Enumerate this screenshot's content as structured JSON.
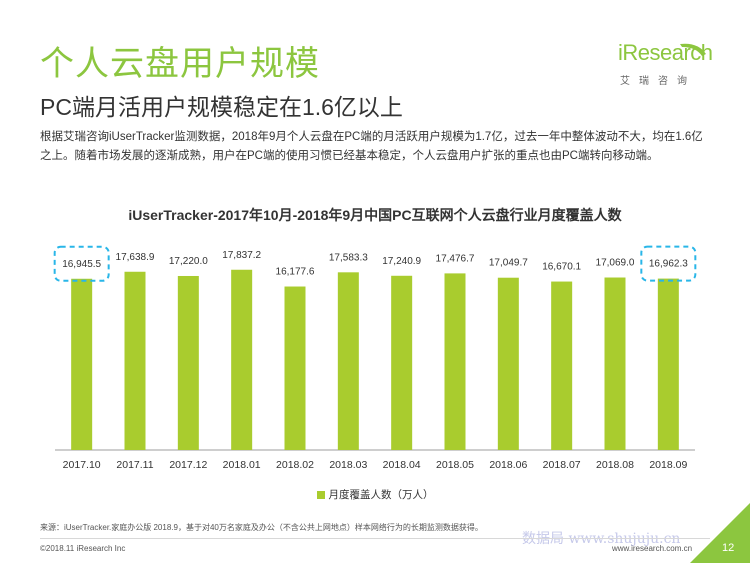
{
  "header": {
    "title": "个人云盘用户规模",
    "subtitle": "PC端月活用户规模稳定在1.6亿以上",
    "description": "根据艾瑞咨询iUserTracker监测数据，2018年9月个人云盘在PC端的月活跃用户规模为1.7亿，过去一年中整体波动不大，均在1.6亿之上。随着市场发展的逐渐成熟，用户在PC端的使用习惯已经基本稳定，个人云盘用户扩张的重点也由PC端转向移动端。"
  },
  "logo": {
    "brand": "iResearch",
    "cn": "艾瑞咨询"
  },
  "chart_data": {
    "type": "bar",
    "title": "iUserTracker-2017年10月-2018年9月中国PC互联网个人云盘行业月度覆盖人数",
    "categories": [
      "2017.10",
      "2017.11",
      "2017.12",
      "2018.01",
      "2018.02",
      "2018.03",
      "2018.04",
      "2018.05",
      "2018.06",
      "2018.07",
      "2018.08",
      "2018.09"
    ],
    "series": [
      {
        "name": "月度覆盖人数（万人）",
        "values": [
          16945.5,
          17638.9,
          17220.0,
          17837.2,
          16177.6,
          17583.3,
          17240.9,
          17476.7,
          17049.7,
          16670.1,
          17069.0,
          16962.3
        ],
        "labels": [
          "16,945.5",
          "17,638.9",
          "17,220.0",
          "17,837.2",
          "16,177.6",
          "17,583.3",
          "17,240.9",
          "17,476.7",
          "17,049.7",
          "16,670.1",
          "17,069.0",
          "16,962.3"
        ]
      }
    ],
    "ylim": [
      0,
      19000
    ],
    "highlighted": [
      "2017.10",
      "2018.09"
    ],
    "colors": {
      "bar": "#a9cc2e",
      "highlight": "#29b6e8",
      "axis": "#9e9e9e"
    },
    "legend_position": "bottom",
    "grid": false
  },
  "footer": {
    "source": "来源：iUserTracker.家庭办公版 2018.9，基于对40万名家庭及办公（不含公共上网地点）样本网络行为的长期监测数据获得。",
    "copyright": "©2018.11 iResearch Inc",
    "site": "www.iresearch.com.cn",
    "watermark": "数据局 www.shujuju.cn",
    "page_number": "12"
  }
}
